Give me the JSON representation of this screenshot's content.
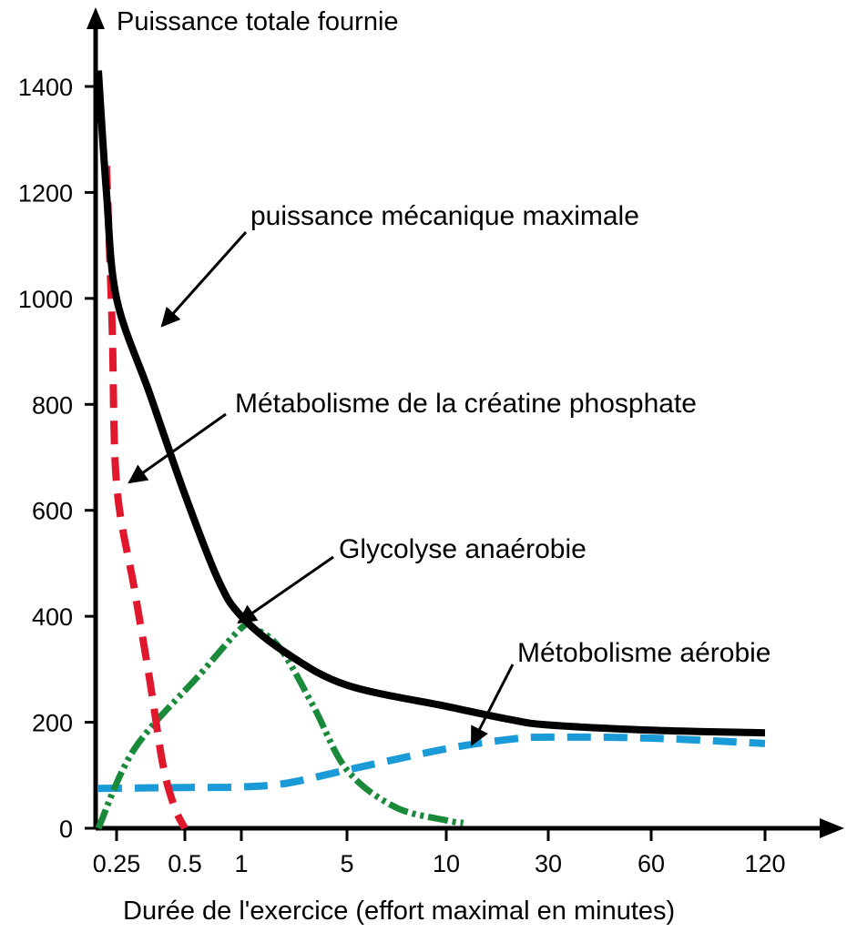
{
  "chart_data": {
    "type": "line",
    "title": "Puissance totale fournie",
    "xlabel": "Durée de l'exercice (effort maximal en minutes)",
    "ylabel": "",
    "ylim": [
      0,
      1400
    ],
    "y_ticks": [
      "0",
      "200",
      "400",
      "600",
      "800",
      "1000",
      "1200",
      "1400"
    ],
    "x_ticks": [
      "0.25",
      "0.5",
      "1",
      "5",
      "10",
      "30",
      "60",
      "120"
    ],
    "grid": false,
    "series": [
      {
        "name": "puissance mécanique maximale",
        "color": "#000000",
        "style": "solid",
        "points": [
          [
            0.1,
            1430
          ],
          [
            0.15,
            1200
          ],
          [
            0.25,
            1000
          ],
          [
            0.35,
            820
          ],
          [
            0.5,
            630
          ],
          [
            0.75,
            470
          ],
          [
            1,
            400
          ],
          [
            2,
            330
          ],
          [
            5,
            270
          ],
          [
            10,
            230
          ],
          [
            20,
            205
          ],
          [
            30,
            195
          ],
          [
            60,
            185
          ],
          [
            120,
            180
          ]
        ]
      },
      {
        "name": "Métabolisme de la créatine phosphate",
        "color": "#e0182d",
        "style": "dashed",
        "points": [
          [
            0.15,
            1250
          ],
          [
            0.2,
            950
          ],
          [
            0.25,
            650
          ],
          [
            0.3,
            450
          ],
          [
            0.35,
            280
          ],
          [
            0.4,
            120
          ],
          [
            0.45,
            40
          ],
          [
            0.5,
            0
          ]
        ]
      },
      {
        "name": "Glycolyse anaérobie",
        "color": "#1a8a3a",
        "style": "dash-dot",
        "points": [
          [
            0.1,
            0
          ],
          [
            0.3,
            150
          ],
          [
            0.6,
            290
          ],
          [
            1,
            378
          ],
          [
            1.2,
            378
          ],
          [
            1.8,
            340
          ],
          [
            3,
            230
          ],
          [
            5,
            110
          ],
          [
            7,
            40
          ],
          [
            10,
            15
          ],
          [
            12,
            10
          ]
        ]
      },
      {
        "name": "Métobolisme aérobie",
        "color": "#1a9ad6",
        "style": "dashed",
        "points": [
          [
            0.1,
            75
          ],
          [
            0.5,
            77
          ],
          [
            1,
            78
          ],
          [
            2,
            85
          ],
          [
            5,
            110
          ],
          [
            10,
            150
          ],
          [
            20,
            168
          ],
          [
            30,
            172
          ],
          [
            60,
            170
          ],
          [
            120,
            160
          ]
        ]
      }
    ],
    "annotations": [
      {
        "text": "puissance mécanique maximale",
        "target": "puissance mécanique maximale"
      },
      {
        "text": "Métabolisme de la créatine phosphate",
        "target": "Métabolisme de la créatine phosphate"
      },
      {
        "text": "Glycolyse anaérobie",
        "target": "Glycolyse anaérobie"
      },
      {
        "text": "Métobolisme aérobie",
        "target": "Métobolisme aérobie"
      }
    ]
  }
}
